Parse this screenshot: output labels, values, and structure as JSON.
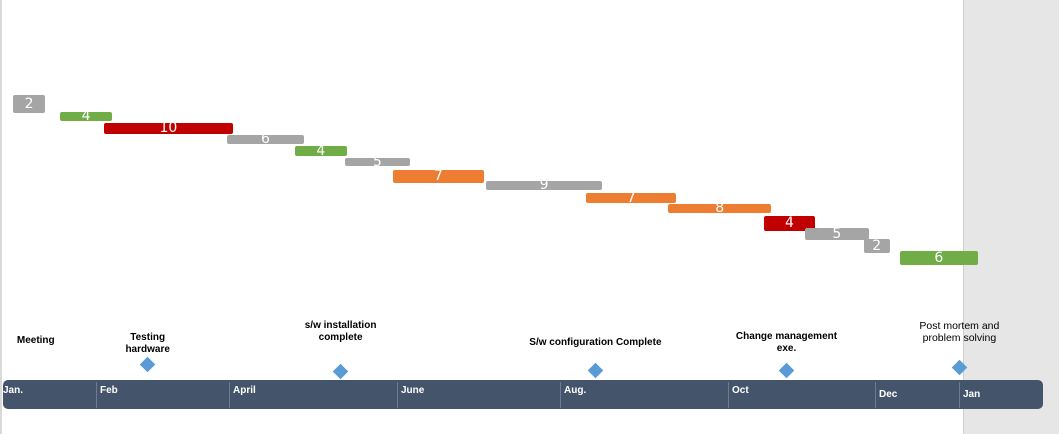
{
  "gantt": {
    "tasks": [
      {
        "start": 0.0,
        "duration": 2,
        "label": "2",
        "color": "#a5a5a5"
      },
      {
        "start": 0.52,
        "duration": 4,
        "label": "4",
        "color": "#70ad47"
      },
      {
        "start": 1.0,
        "duration": 10,
        "label": "10",
        "color": "#c00000"
      },
      {
        "start": 2.35,
        "duration": 6,
        "label": "6",
        "color": "#a5a5a5"
      },
      {
        "start": 3.1,
        "duration": 4,
        "label": "4",
        "color": "#70ad47"
      },
      {
        "start": 3.65,
        "duration": 5,
        "label": "5",
        "color": "#a5a5a5"
      },
      {
        "start": 4.18,
        "duration": 7,
        "label": "7",
        "color": "#ed7d31"
      },
      {
        "start": 5.2,
        "duration": 9,
        "label": "9",
        "color": "#a5a5a5"
      },
      {
        "start": 6.3,
        "duration": 7,
        "label": "7",
        "color": "#ed7d31"
      },
      {
        "start": 7.2,
        "duration": 8,
        "label": "8",
        "color": "#ed7d31"
      },
      {
        "start": 8.25,
        "duration": 4,
        "label": "4",
        "color": "#c00000"
      },
      {
        "start": 8.7,
        "duration": 5,
        "label": "5",
        "color": "#a5a5a5"
      },
      {
        "start": 9.35,
        "duration": 2,
        "label": "2",
        "color": "#a5a5a5"
      },
      {
        "start": 9.75,
        "duration": 6,
        "label": "6",
        "color": "#70ad47"
      }
    ]
  },
  "milestones": [
    {
      "label": "Meeting",
      "position": 0.25,
      "has_marker": false
    },
    {
      "label": "Testing\nhardware",
      "position": 1.48,
      "has_marker": true
    },
    {
      "label": "s/w installation\ncomplete",
      "position": 3.6,
      "has_marker": true
    },
    {
      "label": "S/w configuration Complete",
      "position": 6.4,
      "has_marker": true
    },
    {
      "label": "Change management\nexe.",
      "position": 8.5,
      "has_marker": true
    },
    {
      "label": "Post mortem and\nproblem solving",
      "position": 10.4,
      "has_marker": true
    }
  ],
  "timeline": {
    "labels": [
      "Jan.",
      "Feb",
      "April",
      "June",
      "Aug.",
      "Oct",
      "Dec",
      "Jan"
    ],
    "accent": "#44546a",
    "marker_color": "#5b9bd5"
  }
}
